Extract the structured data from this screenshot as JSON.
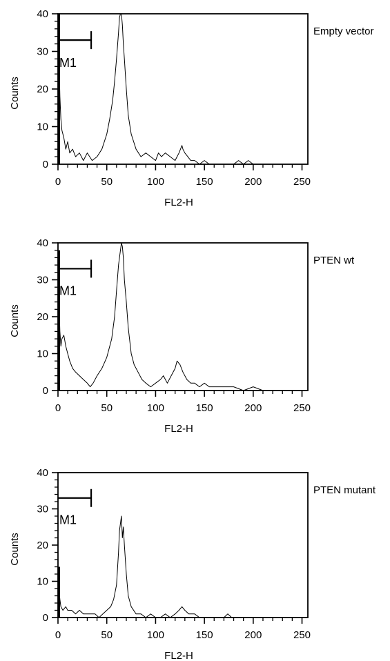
{
  "chart_data": [
    {
      "type": "line",
      "label": "Empty vector",
      "xlabel": "FL2-H",
      "ylabel": "Counts",
      "xlim": [
        0,
        256
      ],
      "ylim": [
        0,
        40
      ],
      "xticks": [
        0,
        50,
        100,
        150,
        200,
        250
      ],
      "yticks": [
        0,
        10,
        20,
        30,
        40
      ],
      "marker": {
        "label": "M1",
        "x_start": 0,
        "x_end": 34,
        "y": 33
      },
      "grid": false,
      "series": [
        {
          "x": [
            0,
            1,
            2,
            3,
            4,
            6,
            8,
            10,
            12,
            15,
            18,
            22,
            26,
            30,
            35,
            40,
            45,
            50,
            53,
            56,
            58,
            60,
            62,
            63,
            64,
            65,
            66,
            67,
            68,
            70,
            72,
            75,
            80,
            85,
            90,
            95,
            100,
            103,
            106,
            110,
            115,
            120,
            124,
            127,
            128,
            130,
            133,
            136,
            140,
            145,
            150,
            155,
            160,
            170,
            180,
            185,
            190,
            195,
            200,
            210,
            220,
            230,
            240,
            250,
            256
          ],
          "y": [
            40,
            30,
            18,
            12,
            9,
            7,
            4,
            6,
            3,
            4,
            2,
            3,
            1,
            3,
            1,
            2,
            4,
            8,
            12,
            17,
            22,
            28,
            35,
            39,
            40,
            40,
            37,
            32,
            28,
            20,
            13,
            8,
            4,
            2,
            3,
            2,
            1,
            3,
            2,
            3,
            2,
            1,
            3,
            5,
            4,
            3,
            2,
            1,
            1,
            0,
            1,
            0,
            0,
            0,
            0,
            1,
            0,
            1,
            0,
            0,
            0,
            0,
            0,
            0,
            0
          ]
        }
      ]
    },
    {
      "type": "line",
      "label": "PTEN wt",
      "xlabel": "FL2-H",
      "ylabel": "Counts",
      "xlim": [
        0,
        256
      ],
      "ylim": [
        0,
        40
      ],
      "xticks": [
        0,
        50,
        100,
        150,
        200,
        250
      ],
      "yticks": [
        0,
        10,
        20,
        30,
        40
      ],
      "marker": {
        "label": "M1",
        "x_start": 0,
        "x_end": 34,
        "y": 33
      },
      "grid": false,
      "series": [
        {
          "x": [
            0,
            1,
            2,
            3,
            4,
            6,
            8,
            10,
            12,
            15,
            18,
            22,
            26,
            30,
            33,
            36,
            40,
            45,
            50,
            55,
            58,
            60,
            62,
            64,
            65,
            66,
            67,
            68,
            70,
            72,
            75,
            78,
            82,
            86,
            90,
            95,
            100,
            105,
            108,
            112,
            116,
            120,
            122,
            125,
            128,
            132,
            136,
            140,
            145,
            150,
            155,
            160,
            170,
            180,
            190,
            200,
            210,
            220,
            230,
            240,
            250,
            256
          ],
          "y": [
            38,
            25,
            16,
            12,
            14,
            15,
            12,
            10,
            8,
            6,
            5,
            4,
            3,
            2,
            1,
            2,
            4,
            6,
            9,
            14,
            20,
            27,
            34,
            38,
            40,
            39,
            36,
            30,
            24,
            17,
            10,
            7,
            5,
            3,
            2,
            1,
            2,
            3,
            4,
            2,
            4,
            6,
            8,
            7,
            5,
            3,
            2,
            2,
            1,
            2,
            1,
            1,
            1,
            1,
            0,
            1,
            0,
            0,
            0,
            0,
            0,
            0
          ]
        }
      ]
    },
    {
      "type": "line",
      "label": "PTEN mutant",
      "xlabel": "FL2-H",
      "ylabel": "Counts",
      "xlim": [
        0,
        256
      ],
      "ylim": [
        0,
        40
      ],
      "xticks": [
        0,
        50,
        100,
        150,
        200,
        250
      ],
      "yticks": [
        0,
        10,
        20,
        30,
        40
      ],
      "marker": {
        "label": "M1",
        "x_start": 0,
        "x_end": 34,
        "y": 33
      },
      "grid": false,
      "series": [
        {
          "x": [
            0,
            1,
            2,
            3,
            5,
            8,
            10,
            14,
            18,
            22,
            26,
            30,
            34,
            38,
            42,
            46,
            50,
            54,
            57,
            60,
            62,
            63,
            64,
            65,
            66,
            67,
            68,
            70,
            72,
            75,
            80,
            85,
            90,
            95,
            100,
            105,
            110,
            115,
            120,
            124,
            127,
            130,
            134,
            140,
            145,
            150,
            160,
            170,
            174,
            178,
            185,
            200,
            220,
            240,
            256
          ],
          "y": [
            14,
            8,
            5,
            3,
            2,
            3,
            2,
            2,
            1,
            2,
            1,
            1,
            1,
            1,
            0,
            1,
            2,
            3,
            5,
            9,
            18,
            24,
            26,
            28,
            22,
            25,
            20,
            12,
            6,
            3,
            1,
            1,
            0,
            1,
            0,
            0,
            1,
            0,
            1,
            2,
            3,
            2,
            1,
            1,
            0,
            0,
            0,
            0,
            1,
            0,
            0,
            0,
            0,
            0,
            0
          ]
        }
      ]
    }
  ]
}
